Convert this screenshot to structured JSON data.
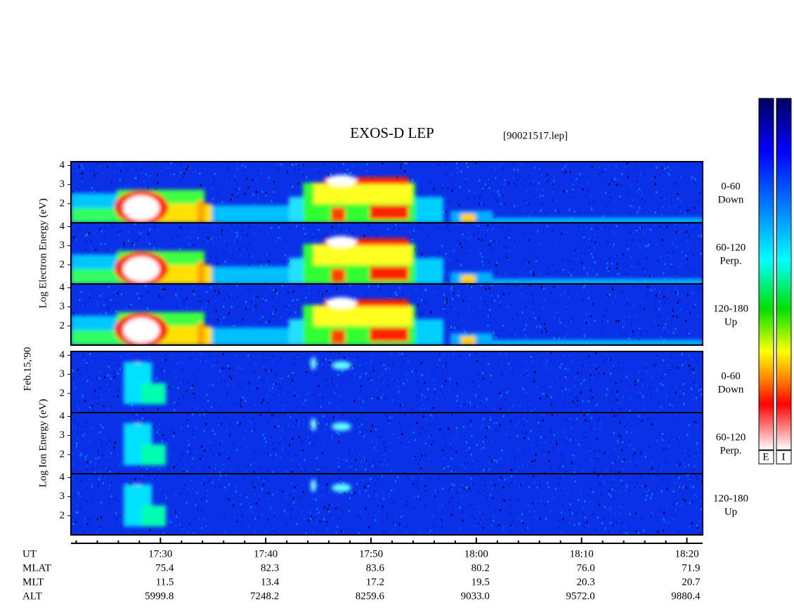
{
  "chart_data": {
    "type": "spectrogram",
    "title": "EXOS-D LEP",
    "subtitle": "[90021517.lep]",
    "date_label": "Feb.15,'90",
    "xlim": [
      1041.5,
      1101.5
    ],
    "xticks": [
      {
        "value": 1050,
        "label": "17:30"
      },
      {
        "value": 1060,
        "label": "17:40"
      },
      {
        "value": 1070,
        "label": "17:50"
      },
      {
        "value": 1080,
        "label": "18:00"
      },
      {
        "value": 1090,
        "label": "18:10"
      },
      {
        "value": 1100,
        "label": "18:20"
      }
    ],
    "xminorticks": [
      1042,
      1044,
      1046,
      1048,
      1052,
      1054,
      1056,
      1058,
      1062,
      1064,
      1066,
      1068,
      1072,
      1074,
      1076,
      1078,
      1082,
      1084,
      1086,
      1088,
      1092,
      1094,
      1096,
      1098
    ],
    "ylim": [
      1,
      4.2
    ],
    "yticks": [
      2,
      3,
      4
    ],
    "groups": [
      {
        "ylabel": "Log Electron Energy (eV)",
        "panels": [
          {
            "label": [
              "0-60",
              "Down"
            ]
          },
          {
            "label": [
              "60-120",
              "Perp."
            ]
          },
          {
            "label": [
              "120-180",
              "Up"
            ]
          }
        ]
      },
      {
        "ylabel": "Log Ion Energy (eV)",
        "panels": [
          {
            "label": [
              "0-60",
              "Down"
            ]
          },
          {
            "label": [
              "60-120",
              "Perp."
            ]
          },
          {
            "label": [
              "120-180",
              "Up"
            ]
          }
        ]
      }
    ],
    "colorbar_labels": [
      "E",
      "I"
    ],
    "table": {
      "row_labels": [
        "UT",
        "MLAT",
        "MLT",
        "ALT"
      ],
      "rows": [
        [
          "75.4",
          "82.3",
          "83.6",
          "80.2",
          "76.0",
          "71.9"
        ],
        [
          "11.5",
          "13.4",
          "17.2",
          "19.5",
          "20.3",
          "20.7"
        ],
        [
          "5999.8",
          "7248.2",
          "8259.6",
          "9033.0",
          "9572.0",
          "9880.4"
        ]
      ]
    }
  }
}
